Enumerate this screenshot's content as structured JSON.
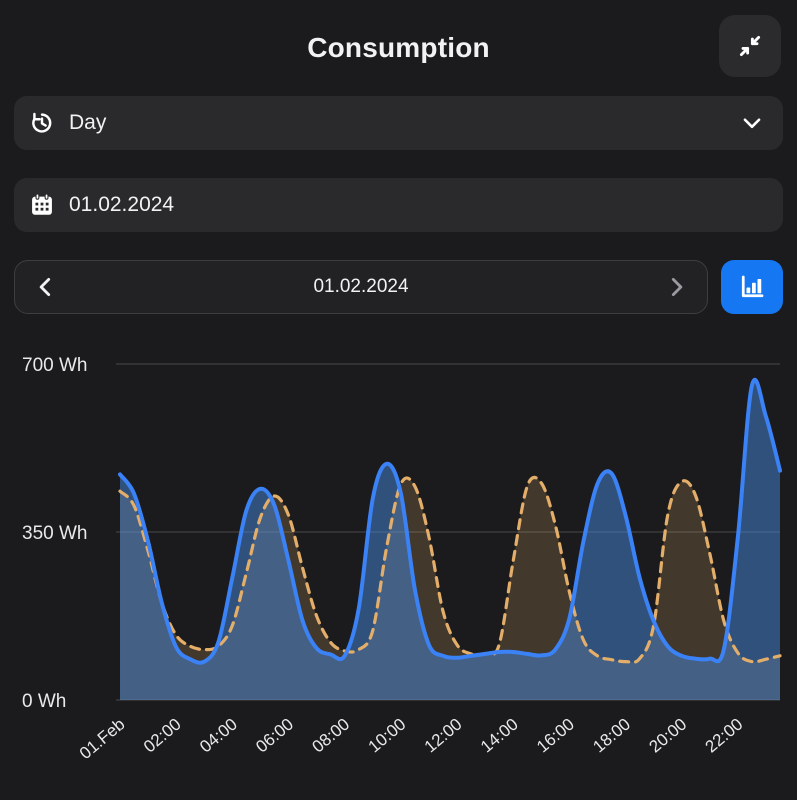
{
  "header": {
    "title": "Consumption"
  },
  "icons": {
    "collapse": "collapse-arrows-icon",
    "period": "history-icon",
    "period_chevron": "chevron-down-icon",
    "date": "calendar-icon",
    "nav_prev": "chevron-left-icon",
    "nav_next": "chevron-right-icon",
    "chart_type": "bar-chart-icon"
  },
  "period_select": {
    "value": "Day"
  },
  "date_field": {
    "value": "01.02.2024"
  },
  "date_nav": {
    "label": "01.02.2024"
  },
  "colors": {
    "background": "#1b1b1d",
    "field_background": "#2a2a2c",
    "accent_blue": "#1578f2",
    "line_blue": "#3b82f6",
    "line_orange": "#e3ae6a",
    "grid": "#4a4a4d"
  },
  "chart_data": {
    "type": "area",
    "title": "",
    "xlabel": "",
    "ylabel": "Wh",
    "grid": true,
    "legend": "none",
    "x_domain": [
      0,
      23.5
    ],
    "step_hours": 0.5,
    "ylim": [
      0,
      700
    ],
    "y_ticks": [
      {
        "value": 700,
        "label": "700 Wh"
      },
      {
        "value": 350,
        "label": "350 Wh"
      },
      {
        "value": 0,
        "label": "0 Wh"
      }
    ],
    "x_ticks": [
      {
        "hour": 0,
        "label": "01.Feb"
      },
      {
        "hour": 2,
        "label": "02:00"
      },
      {
        "hour": 4,
        "label": "04:00"
      },
      {
        "hour": 6,
        "label": "06:00"
      },
      {
        "hour": 8,
        "label": "08:00"
      },
      {
        "hour": 10,
        "label": "10:00"
      },
      {
        "hour": 12,
        "label": "12:00"
      },
      {
        "hour": 14,
        "label": "14:00"
      },
      {
        "hour": 16,
        "label": "16:00"
      },
      {
        "hour": 18,
        "label": "18:00"
      },
      {
        "hour": 20,
        "label": "20:00"
      },
      {
        "hour": 22,
        "label": "22:00"
      }
    ],
    "series": [
      {
        "name": "consumption",
        "line": "solid",
        "color": "#3b82f6",
        "fill": "rgba(70,135,220,0.5)",
        "values": [
          470,
          430,
          330,
          200,
          110,
          85,
          80,
          120,
          255,
          395,
          440,
          405,
          290,
          165,
          108,
          95,
          92,
          190,
          420,
          492,
          430,
          230,
          115,
          92,
          88,
          92,
          96,
          100,
          100,
          96,
          93,
          105,
          170,
          330,
          450,
          472,
          385,
          255,
          165,
          112,
          92,
          86,
          86,
          105,
          340,
          655,
          590,
          478
        ]
      },
      {
        "name": "comparison",
        "line": "dashed",
        "color": "#e3ae6a",
        "fill": "rgba(227,174,106,0.2)",
        "values": [
          435,
          405,
          310,
          200,
          135,
          112,
          105,
          112,
          155,
          265,
          380,
          425,
          385,
          275,
          175,
          120,
          102,
          105,
          145,
          320,
          450,
          445,
          340,
          185,
          115,
          96,
          96,
          115,
          290,
          445,
          452,
          365,
          225,
          125,
          92,
          84,
          80,
          86,
          155,
          385,
          455,
          425,
          305,
          165,
          98,
          80,
          85,
          92
        ]
      }
    ]
  }
}
